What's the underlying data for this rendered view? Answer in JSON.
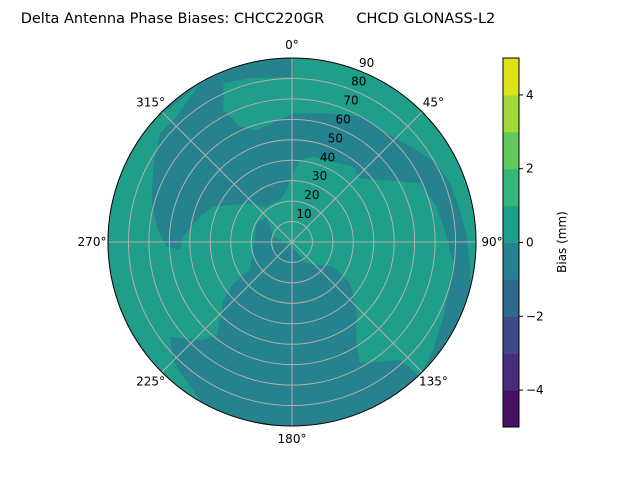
{
  "chart_data": {
    "type": "polar contour",
    "title": "Delta Antenna Phase Biases: CHCC220GR       CHCD GLONASS-L2",
    "angular_ticks": [
      "0°",
      "45°",
      "90°",
      "135°",
      "180°",
      "225°",
      "270°",
      "315°"
    ],
    "radial_ticks": [
      10,
      20,
      30,
      40,
      50,
      60,
      70,
      80,
      90
    ],
    "radial_range": [
      0,
      90
    ],
    "grid": true,
    "colorbar": {
      "label": "Bias (mm)",
      "levels": [
        -5,
        -4,
        -3,
        -2,
        -1,
        0,
        1,
        2,
        3,
        4,
        5
      ],
      "ticks": [
        -4,
        -2,
        0,
        2,
        4
      ],
      "tick_labels": [
        "−4",
        "−2",
        "0",
        "2",
        "4"
      ],
      "colors": [
        "#471164",
        "#472f7d",
        "#3b518b",
        "#2c718e",
        "#21908d",
        "#27ad81",
        "#5cc863",
        "#aadc32",
        "#fde725"
      ],
      "band_colors": [
        "#46105f",
        "#472d7b",
        "#3e4a89",
        "#31688e",
        "#26828e",
        "#1f9e89",
        "#35b779",
        "#61c95d",
        "#a0da39",
        "#dde318"
      ],
      "colormap": "viridis",
      "placement": "right"
    },
    "levels_present": [
      "-1 to 0",
      "0 to 1"
    ],
    "level_colors": {
      "-1 to 0": "#26828e",
      "0 to 1": "#1f9e89"
    }
  }
}
